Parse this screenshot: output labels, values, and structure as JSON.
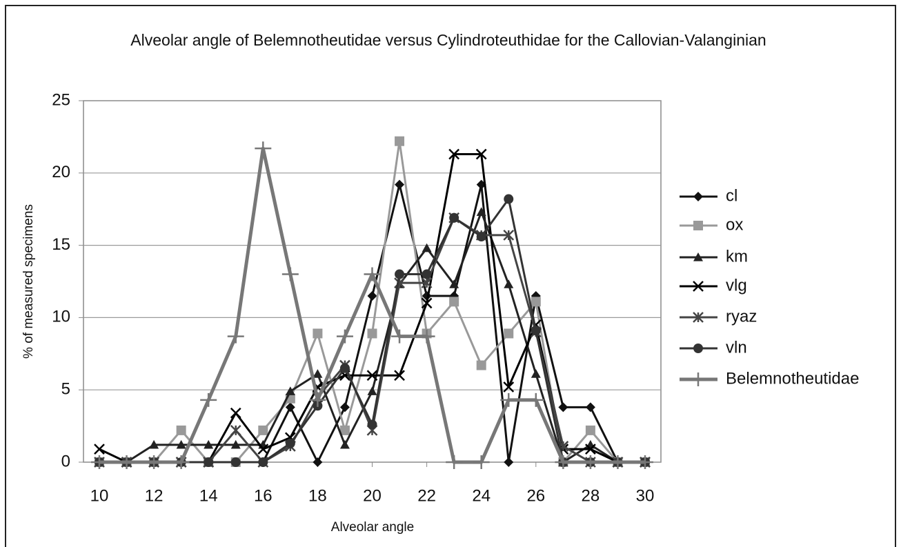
{
  "chart_data": {
    "type": "line",
    "title": "Alveolar angle of Belemnotheutidae versus Cylindroteuthidae for the Callovian-Valanginian",
    "x_label": "Alveolar angle",
    "y_label": "% of measured specimens",
    "x": [
      10,
      11,
      12,
      13,
      14,
      15,
      16,
      17,
      18,
      19,
      20,
      21,
      22,
      23,
      24,
      25,
      26,
      27,
      28,
      29,
      30
    ],
    "xlim": [
      10,
      30
    ],
    "xticks": [
      10,
      12,
      14,
      16,
      18,
      20,
      22,
      24,
      26,
      28,
      30
    ],
    "ylim": [
      0,
      25
    ],
    "yticks": [
      0,
      5,
      10,
      15,
      20,
      25
    ],
    "grid": true,
    "legend": "right",
    "series": [
      {
        "name": "cl",
        "color": "#111111",
        "marker": "diamond",
        "values": [
          0,
          0,
          0,
          0,
          0,
          0,
          0,
          3.8,
          0,
          3.8,
          11.5,
          19.2,
          11.5,
          11.5,
          19.2,
          0,
          11.5,
          3.8,
          3.8,
          0,
          0
        ]
      },
      {
        "name": "ox",
        "color": "#999999",
        "marker": "square",
        "values": [
          0,
          0,
          0,
          2.2,
          0,
          0,
          2.2,
          4.4,
          8.9,
          2.2,
          8.9,
          22.2,
          8.9,
          11.1,
          6.7,
          8.9,
          11.1,
          0,
          2.2,
          0,
          0
        ]
      },
      {
        "name": "km",
        "color": "#222222",
        "marker": "triangle",
        "values": [
          0,
          0,
          1.2,
          1.2,
          1.2,
          1.2,
          1.2,
          4.9,
          6.1,
          1.2,
          4.9,
          12.3,
          14.8,
          12.3,
          17.3,
          12.3,
          6.1,
          0,
          1.2,
          0,
          0
        ]
      },
      {
        "name": "vlg",
        "color": "#000000",
        "marker": "x",
        "values": [
          0.9,
          0,
          0,
          0,
          0,
          3.4,
          0.9,
          1.7,
          5.2,
          6,
          6,
          6,
          11,
          21.3,
          21.3,
          5.2,
          9.5,
          0.9,
          0.9,
          0,
          0
        ]
      },
      {
        "name": "ryaz",
        "color": "#444444",
        "marker": "star",
        "values": [
          0,
          0,
          0,
          0,
          0,
          2.2,
          0,
          1.1,
          4.5,
          6.7,
          2.2,
          12.4,
          12.4,
          16.9,
          15.7,
          15.7,
          9,
          1.1,
          0,
          0,
          0
        ]
      },
      {
        "name": "vln",
        "color": "#333333",
        "marker": "circle",
        "values": [
          0,
          0,
          0,
          0,
          0,
          0,
          0,
          1.3,
          3.9,
          6.5,
          2.6,
          13,
          13,
          16.9,
          15.6,
          18.2,
          9.1,
          0,
          0,
          0,
          0
        ]
      },
      {
        "name": "Belemnotheutidae",
        "color": "#777777",
        "marker": "plus",
        "values": [
          0,
          0,
          0,
          0,
          4.3,
          8.7,
          21.7,
          13,
          4.3,
          8.7,
          13,
          8.7,
          8.7,
          0,
          0,
          4.3,
          4.3,
          0,
          0,
          0,
          0
        ]
      }
    ]
  }
}
